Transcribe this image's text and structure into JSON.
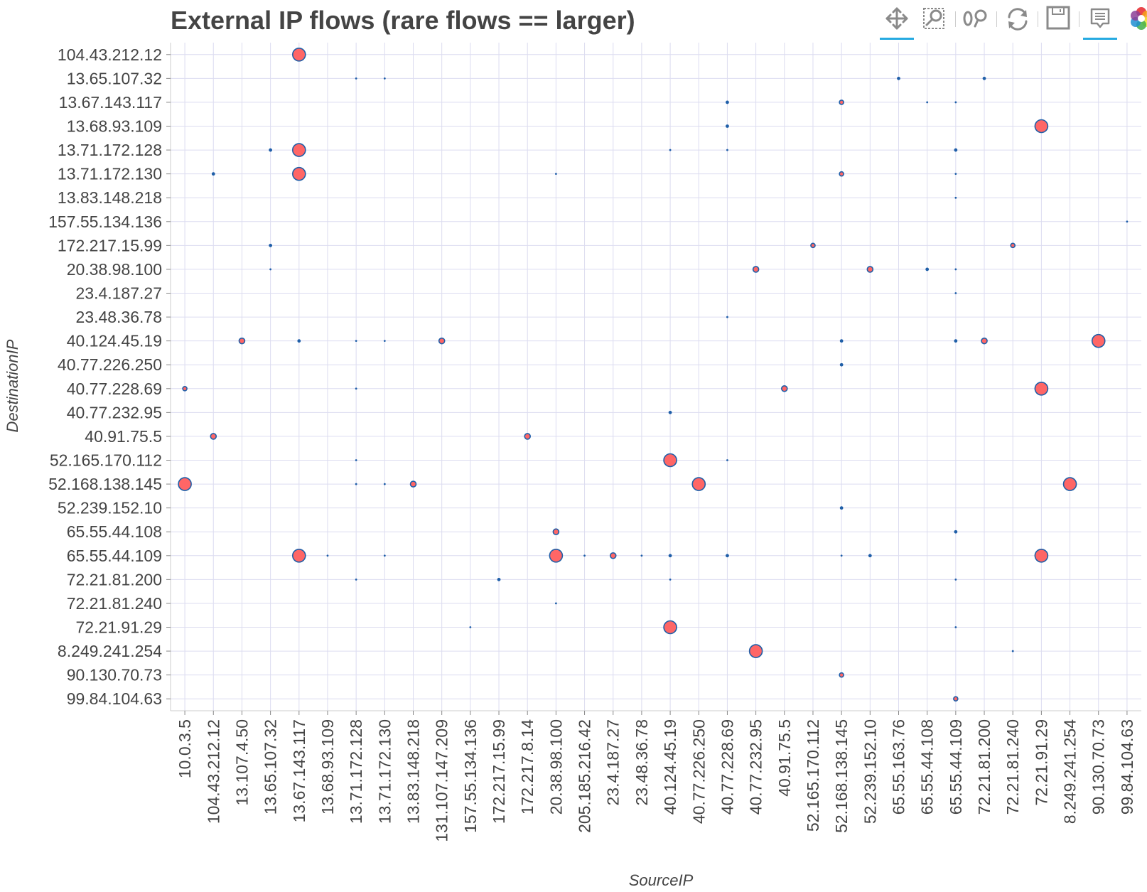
{
  "toolbar": {
    "tools": [
      {
        "name": "pan-tool",
        "icon": "pan-icon",
        "active": true
      },
      {
        "name": "box-zoom-tool",
        "icon": "box-zoom-icon",
        "active": false
      },
      {
        "name": "wheel-zoom-tool",
        "icon": "wheel-zoom-icon",
        "active": false
      },
      {
        "name": "reset-tool",
        "icon": "reset-icon",
        "active": false
      },
      {
        "name": "save-tool",
        "icon": "save-icon",
        "active": false
      },
      {
        "name": "hover-tool",
        "icon": "hover-icon",
        "active": true
      },
      {
        "name": "bokeh-logo",
        "icon": "bokeh-logo-icon",
        "active": false
      }
    ],
    "accent": "#26aae1"
  },
  "chart_data": {
    "type": "scatter",
    "title": "External IP flows (rare flows == larger)",
    "xlabel": "SourceIP",
    "ylabel": "DestinationIP",
    "grid": true,
    "marker_fill": "#ff6666",
    "marker_line": "#1f5fa8",
    "x_categories": [
      "10.0.3.5",
      "104.43.212.12",
      "13.107.4.50",
      "13.65.107.32",
      "13.67.143.117",
      "13.68.93.109",
      "13.71.172.128",
      "13.71.172.130",
      "13.83.148.218",
      "131.107.147.209",
      "157.55.134.136",
      "172.217.15.99",
      "172.217.8.14",
      "20.38.98.100",
      "205.185.216.42",
      "23.4.187.27",
      "23.48.36.78",
      "40.124.45.19",
      "40.77.226.250",
      "40.77.228.69",
      "40.77.232.95",
      "40.91.75.5",
      "52.165.170.112",
      "52.168.138.145",
      "52.239.152.10",
      "65.55.163.76",
      "65.55.44.108",
      "65.55.44.109",
      "72.21.81.200",
      "72.21.81.240",
      "72.21.91.29",
      "8.249.241.254",
      "90.130.70.73",
      "99.84.104.63"
    ],
    "y_categories": [
      "104.43.212.12",
      "13.65.107.32",
      "13.67.143.117",
      "13.68.93.109",
      "13.71.172.128",
      "13.71.172.130",
      "13.83.148.218",
      "157.55.134.136",
      "172.217.15.99",
      "20.38.98.100",
      "23.4.187.27",
      "23.48.36.78",
      "40.124.45.19",
      "40.77.226.250",
      "40.77.228.69",
      "40.77.232.95",
      "40.91.75.5",
      "52.165.170.112",
      "52.168.138.145",
      "52.239.152.10",
      "65.55.44.108",
      "65.55.44.109",
      "72.21.81.200",
      "72.21.81.240",
      "72.21.91.29",
      "8.249.241.254",
      "90.130.70.73",
      "99.84.104.63"
    ],
    "size_scale": "rarity (larger = rarer flow)",
    "points": [
      {
        "x": "13.67.143.117",
        "y": "104.43.212.12",
        "size": 9
      },
      {
        "x": "13.71.172.128",
        "y": "13.65.107.32",
        "size": 1
      },
      {
        "x": "13.71.172.130",
        "y": "13.65.107.32",
        "size": 1
      },
      {
        "x": "65.55.163.76",
        "y": "13.65.107.32",
        "size": 2
      },
      {
        "x": "72.21.81.200",
        "y": "13.65.107.32",
        "size": 2
      },
      {
        "x": "40.77.228.69",
        "y": "13.67.143.117",
        "size": 2
      },
      {
        "x": "52.168.138.145",
        "y": "13.67.143.117",
        "size": 3
      },
      {
        "x": "65.55.44.108",
        "y": "13.67.143.117",
        "size": 1
      },
      {
        "x": "65.55.44.109",
        "y": "13.67.143.117",
        "size": 1
      },
      {
        "x": "40.77.228.69",
        "y": "13.68.93.109",
        "size": 2
      },
      {
        "x": "72.21.91.29",
        "y": "13.68.93.109",
        "size": 9
      },
      {
        "x": "13.65.107.32",
        "y": "13.71.172.128",
        "size": 2
      },
      {
        "x": "13.67.143.117",
        "y": "13.71.172.128",
        "size": 9
      },
      {
        "x": "40.124.45.19",
        "y": "13.71.172.128",
        "size": 1
      },
      {
        "x": "40.77.228.69",
        "y": "13.71.172.128",
        "size": 1
      },
      {
        "x": "65.55.44.109",
        "y": "13.71.172.128",
        "size": 2
      },
      {
        "x": "104.43.212.12",
        "y": "13.71.172.130",
        "size": 2
      },
      {
        "x": "13.67.143.117",
        "y": "13.71.172.130",
        "size": 9
      },
      {
        "x": "20.38.98.100",
        "y": "13.71.172.130",
        "size": 1
      },
      {
        "x": "52.168.138.145",
        "y": "13.71.172.130",
        "size": 3
      },
      {
        "x": "65.55.44.109",
        "y": "13.71.172.130",
        "size": 1
      },
      {
        "x": "65.55.44.109",
        "y": "13.83.148.218",
        "size": 1
      },
      {
        "x": "99.84.104.63",
        "y": "157.55.134.136",
        "size": 1
      },
      {
        "x": "13.65.107.32",
        "y": "172.217.15.99",
        "size": 2
      },
      {
        "x": "52.165.170.112",
        "y": "172.217.15.99",
        "size": 3
      },
      {
        "x": "72.21.81.240",
        "y": "172.217.15.99",
        "size": 3
      },
      {
        "x": "13.65.107.32",
        "y": "20.38.98.100",
        "size": 1
      },
      {
        "x": "40.77.232.95",
        "y": "20.38.98.100",
        "size": 4
      },
      {
        "x": "52.239.152.10",
        "y": "20.38.98.100",
        "size": 4
      },
      {
        "x": "65.55.44.108",
        "y": "20.38.98.100",
        "size": 2
      },
      {
        "x": "65.55.44.109",
        "y": "20.38.98.100",
        "size": 1
      },
      {
        "x": "65.55.44.109",
        "y": "23.4.187.27",
        "size": 1
      },
      {
        "x": "40.77.228.69",
        "y": "23.48.36.78",
        "size": 1
      },
      {
        "x": "13.107.4.50",
        "y": "40.124.45.19",
        "size": 4
      },
      {
        "x": "13.67.143.117",
        "y": "40.124.45.19",
        "size": 2
      },
      {
        "x": "13.71.172.128",
        "y": "40.124.45.19",
        "size": 1
      },
      {
        "x": "13.71.172.130",
        "y": "40.124.45.19",
        "size": 1
      },
      {
        "x": "131.107.147.209",
        "y": "40.124.45.19",
        "size": 4
      },
      {
        "x": "52.168.138.145",
        "y": "40.124.45.19",
        "size": 2
      },
      {
        "x": "65.55.44.109",
        "y": "40.124.45.19",
        "size": 2
      },
      {
        "x": "72.21.81.200",
        "y": "40.124.45.19",
        "size": 4
      },
      {
        "x": "90.130.70.73",
        "y": "40.124.45.19",
        "size": 9
      },
      {
        "x": "52.168.138.145",
        "y": "40.77.226.250",
        "size": 2
      },
      {
        "x": "10.0.3.5",
        "y": "40.77.228.69",
        "size": 3
      },
      {
        "x": "13.71.172.128",
        "y": "40.77.228.69",
        "size": 1
      },
      {
        "x": "40.91.75.5",
        "y": "40.77.228.69",
        "size": 4
      },
      {
        "x": "72.21.91.29",
        "y": "40.77.228.69",
        "size": 9
      },
      {
        "x": "40.124.45.19",
        "y": "40.77.232.95",
        "size": 2
      },
      {
        "x": "104.43.212.12",
        "y": "40.91.75.5",
        "size": 4
      },
      {
        "x": "172.217.8.14",
        "y": "40.91.75.5",
        "size": 4
      },
      {
        "x": "13.71.172.128",
        "y": "52.165.170.112",
        "size": 1
      },
      {
        "x": "40.124.45.19",
        "y": "52.165.170.112",
        "size": 9
      },
      {
        "x": "40.77.228.69",
        "y": "52.165.170.112",
        "size": 1
      },
      {
        "x": "10.0.3.5",
        "y": "52.168.138.145",
        "size": 9
      },
      {
        "x": "13.71.172.128",
        "y": "52.168.138.145",
        "size": 1
      },
      {
        "x": "13.71.172.130",
        "y": "52.168.138.145",
        "size": 1
      },
      {
        "x": "13.83.148.218",
        "y": "52.168.138.145",
        "size": 4
      },
      {
        "x": "40.77.226.250",
        "y": "52.168.138.145",
        "size": 9
      },
      {
        "x": "8.249.241.254",
        "y": "52.168.138.145",
        "size": 9
      },
      {
        "x": "52.168.138.145",
        "y": "52.239.152.10",
        "size": 2
      },
      {
        "x": "20.38.98.100",
        "y": "65.55.44.108",
        "size": 4
      },
      {
        "x": "65.55.44.109",
        "y": "65.55.44.108",
        "size": 2
      },
      {
        "x": "13.67.143.117",
        "y": "65.55.44.109",
        "size": 9
      },
      {
        "x": "13.68.93.109",
        "y": "65.55.44.109",
        "size": 1
      },
      {
        "x": "13.71.172.130",
        "y": "65.55.44.109",
        "size": 1
      },
      {
        "x": "20.38.98.100",
        "y": "65.55.44.109",
        "size": 9
      },
      {
        "x": "205.185.216.42",
        "y": "65.55.44.109",
        "size": 1
      },
      {
        "x": "23.4.187.27",
        "y": "65.55.44.109",
        "size": 4
      },
      {
        "x": "23.48.36.78",
        "y": "65.55.44.109",
        "size": 1
      },
      {
        "x": "40.124.45.19",
        "y": "65.55.44.109",
        "size": 2
      },
      {
        "x": "40.77.228.69",
        "y": "65.55.44.109",
        "size": 2
      },
      {
        "x": "52.168.138.145",
        "y": "65.55.44.109",
        "size": 1
      },
      {
        "x": "52.239.152.10",
        "y": "65.55.44.109",
        "size": 2
      },
      {
        "x": "72.21.91.29",
        "y": "65.55.44.109",
        "size": 9
      },
      {
        "x": "13.71.172.128",
        "y": "72.21.81.200",
        "size": 1
      },
      {
        "x": "172.217.15.99",
        "y": "72.21.81.200",
        "size": 2
      },
      {
        "x": "40.124.45.19",
        "y": "72.21.81.200",
        "size": 1
      },
      {
        "x": "65.55.44.109",
        "y": "72.21.81.200",
        "size": 1
      },
      {
        "x": "20.38.98.100",
        "y": "72.21.81.240",
        "size": 1
      },
      {
        "x": "157.55.134.136",
        "y": "72.21.91.29",
        "size": 1
      },
      {
        "x": "40.124.45.19",
        "y": "72.21.91.29",
        "size": 9
      },
      {
        "x": "65.55.44.109",
        "y": "72.21.91.29",
        "size": 1
      },
      {
        "x": "40.77.232.95",
        "y": "8.249.241.254",
        "size": 9
      },
      {
        "x": "72.21.81.240",
        "y": "8.249.241.254",
        "size": 1
      },
      {
        "x": "52.168.138.145",
        "y": "90.130.70.73",
        "size": 3
      },
      {
        "x": "65.55.44.109",
        "y": "99.84.104.63",
        "size": 3
      }
    ]
  }
}
